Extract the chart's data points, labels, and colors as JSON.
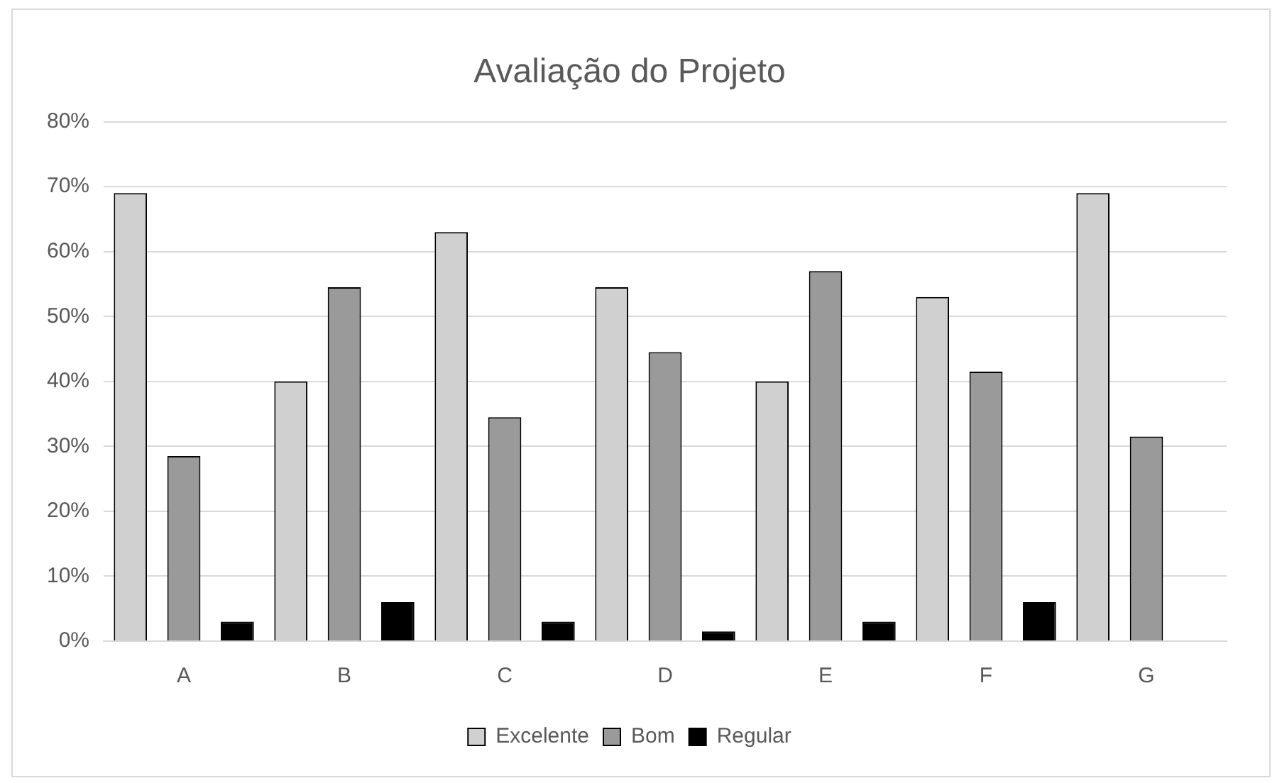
{
  "chart_data": {
    "type": "bar",
    "title": "Avaliação do Projeto",
    "categories": [
      "A",
      "B",
      "C",
      "D",
      "E",
      "F",
      "G"
    ],
    "series": [
      {
        "name": "Excelente",
        "color": "#d0d0d0",
        "values": [
          69,
          40,
          63,
          54.5,
          40,
          53,
          69
        ]
      },
      {
        "name": "Bom",
        "color": "#9a9a9a",
        "values": [
          28.5,
          54.5,
          34.5,
          44.5,
          57,
          41.5,
          31.5
        ]
      },
      {
        "name": "Regular",
        "color": "#000000",
        "values": [
          3,
          6,
          3,
          1.5,
          3,
          6,
          0
        ]
      }
    ],
    "ylim": [
      0,
      80
    ],
    "yticks": [
      {
        "value": 0,
        "label": "0%"
      },
      {
        "value": 10,
        "label": "10%"
      },
      {
        "value": 20,
        "label": "20%"
      },
      {
        "value": 30,
        "label": "30%"
      },
      {
        "value": 40,
        "label": "40%"
      },
      {
        "value": 50,
        "label": "50%"
      },
      {
        "value": 60,
        "label": "60%"
      },
      {
        "value": 70,
        "label": "70%"
      },
      {
        "value": 80,
        "label": "80%"
      }
    ],
    "grid": "y",
    "legend": "bottom"
  }
}
